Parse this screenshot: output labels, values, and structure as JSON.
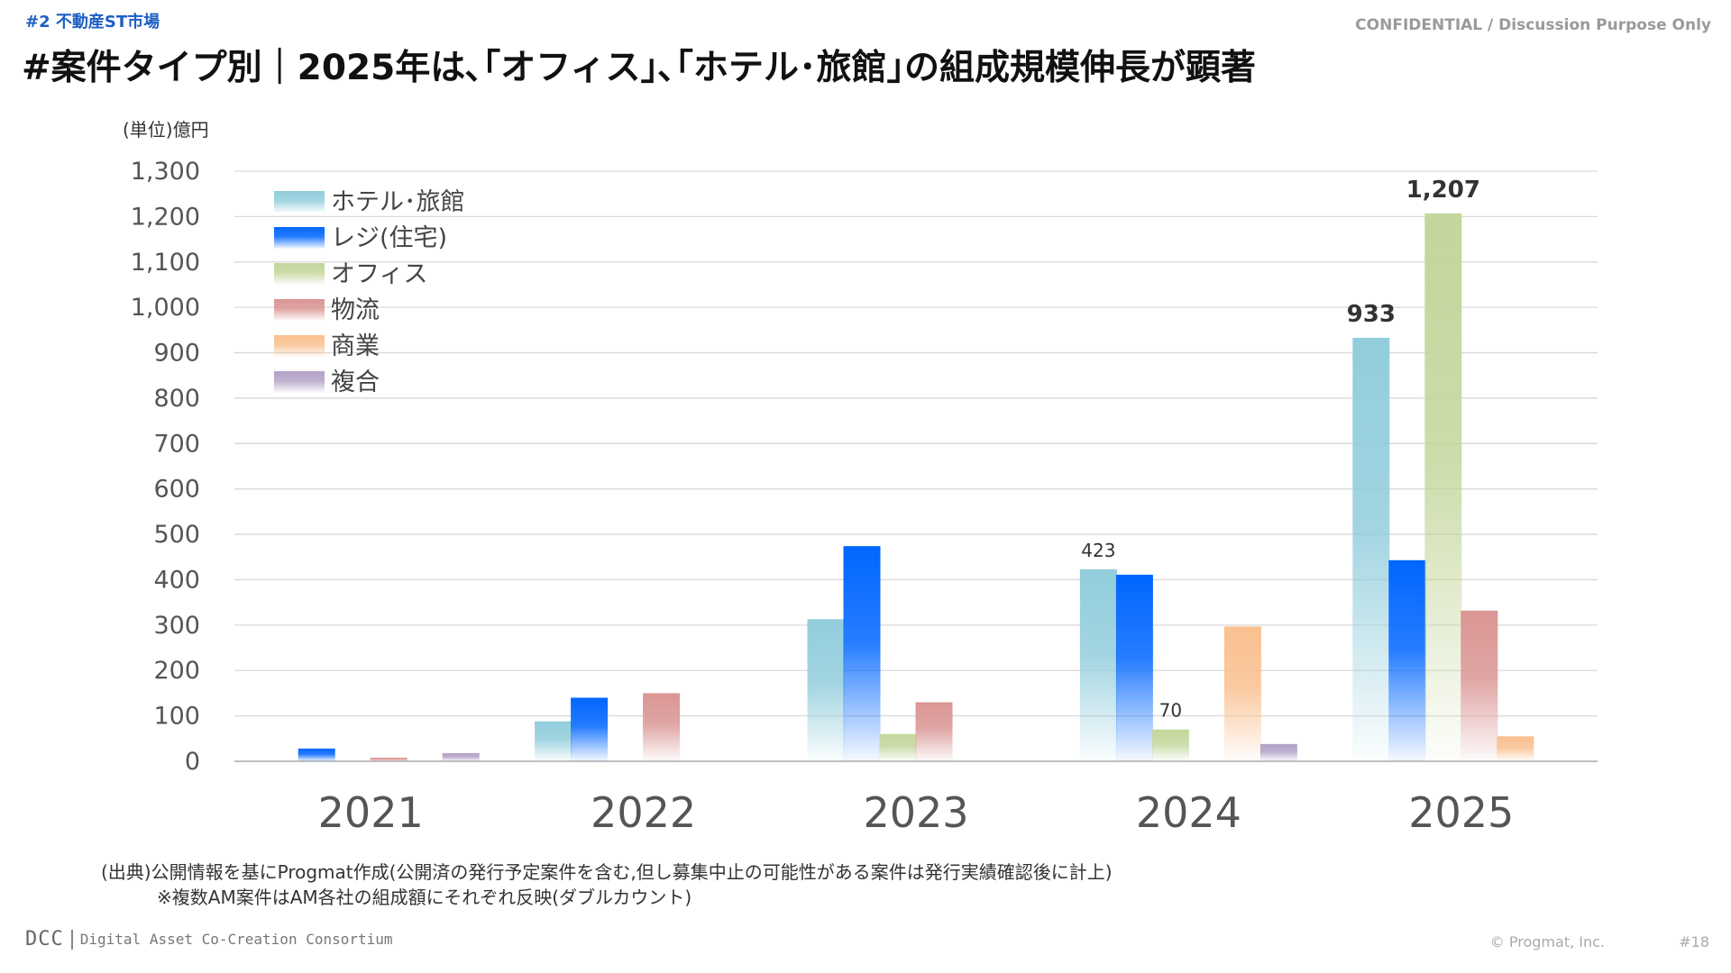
{
  "header": {
    "section_tag": "#2 不動産ST市場",
    "confidential": "CONFIDENTIAL / Discussion Purpose Only",
    "title": "#案件タイプ別｜2025年は､｢オフィス｣､｢ホテル･旅館｣の組成規模伸長が顕著"
  },
  "chart_data": {
    "type": "bar",
    "unit_label": "(単位)億円",
    "categories": [
      "2021",
      "2022",
      "2023",
      "2024",
      "2025"
    ],
    "ylim": [
      0,
      1300
    ],
    "yticks": [
      "0",
      "100",
      "200",
      "300",
      "400",
      "500",
      "600",
      "700",
      "800",
      "900",
      "1,000",
      "1,100",
      "1,200",
      "1,300"
    ],
    "grid": true,
    "legend_position": "top-left",
    "series": [
      {
        "name": "ホテル･旅館",
        "color": "#92cddc",
        "values": [
          0,
          88,
          313,
          423,
          933
        ]
      },
      {
        "name": "レジ(住宅)",
        "color": "#0066ff",
        "values": [
          28,
          140,
          474,
          411,
          443
        ]
      },
      {
        "name": "オフィス",
        "color": "#c3d69b",
        "values": [
          0,
          0,
          60,
          70,
          1207
        ]
      },
      {
        "name": "物流",
        "color": "#da9694",
        "values": [
          8,
          150,
          130,
          0,
          332
        ]
      },
      {
        "name": "商業",
        "color": "#fac090",
        "values": [
          0,
          0,
          0,
          297,
          55
        ]
      },
      {
        "name": "複合",
        "color": "#b3a2c7",
        "values": [
          18,
          0,
          0,
          38,
          0
        ]
      }
    ],
    "data_labels": [
      {
        "category": "2024",
        "series": "ホテル･旅館",
        "value": 423,
        "text": "423",
        "bold": false
      },
      {
        "category": "2024",
        "series": "オフィス",
        "value": 70,
        "text": "70",
        "bold": false
      },
      {
        "category": "2025",
        "series": "ホテル･旅館",
        "value": 933,
        "text": "933",
        "bold": true
      },
      {
        "category": "2025",
        "series": "オフィス",
        "value": 1207,
        "text": "1,207",
        "bold": true
      }
    ]
  },
  "footer": {
    "source_note": "(出典)公開情報を基にProgmat作成(公開済の発行予定案件を含む,但し募集中止の可能性がある案件は発行実績確認後に計上)",
    "double_count_note": "※複数AM案件はAM各社の組成額にそれぞれ反映(ダブルカウント)",
    "brand_logo": "DCC",
    "brand_name": "Digital Asset Co-Creation Consortium",
    "copyright": "© Progmat, Inc.",
    "page_number": "#18"
  }
}
